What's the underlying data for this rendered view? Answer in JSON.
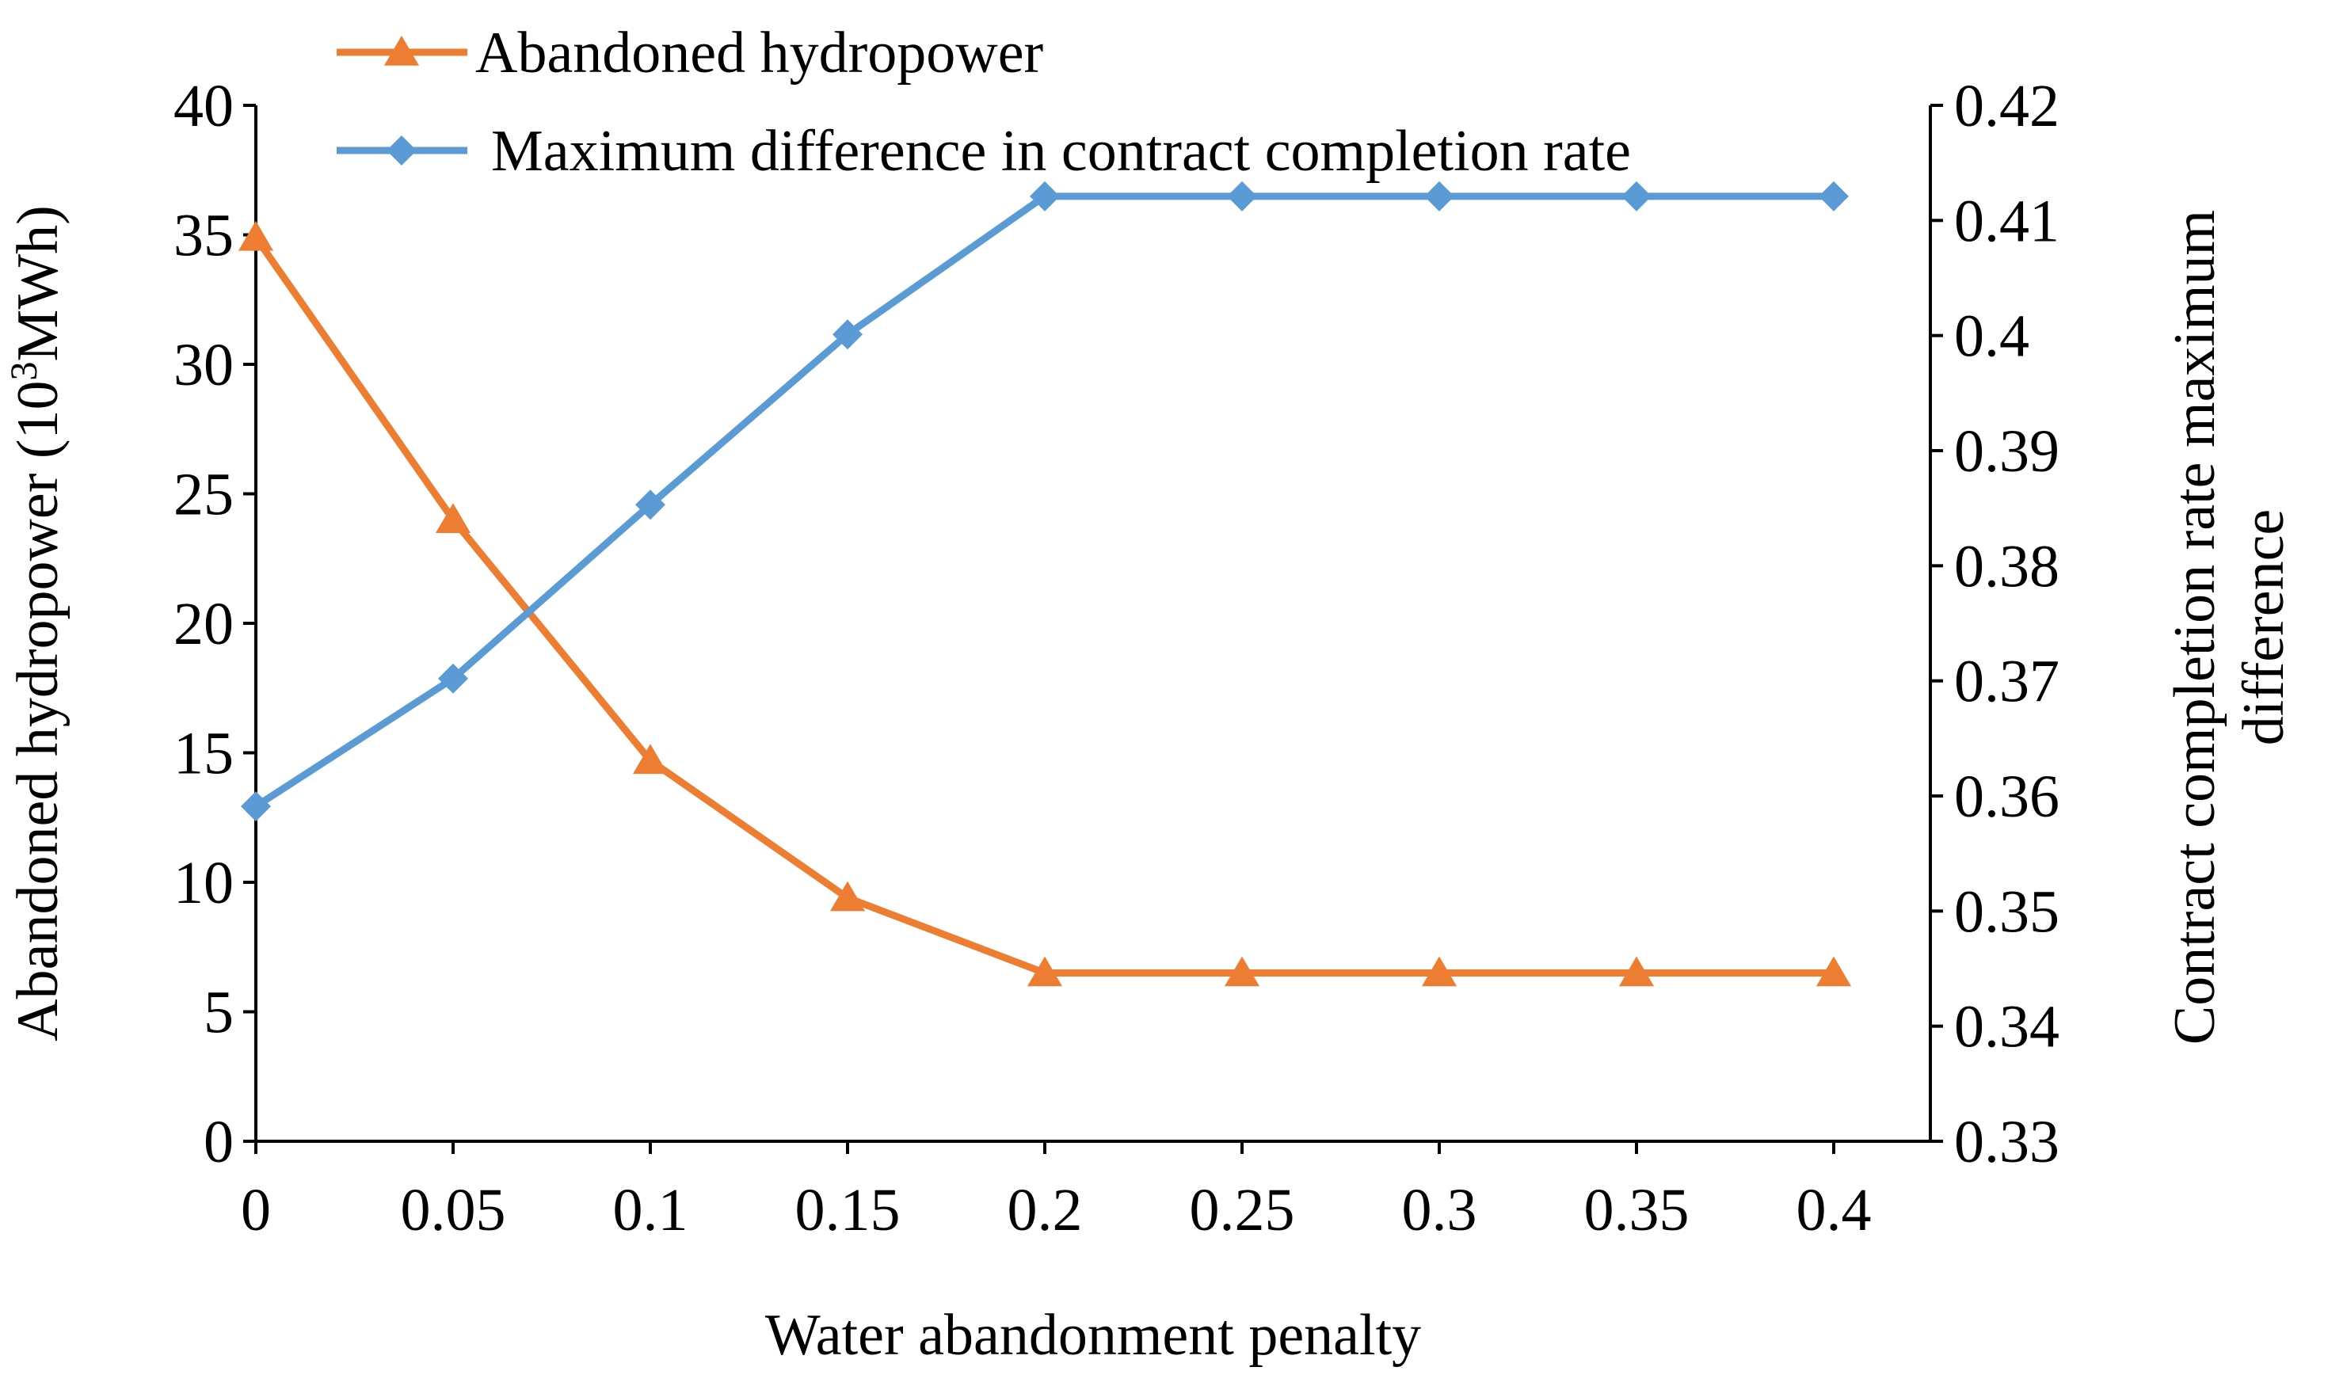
{
  "chart_data": {
    "type": "line",
    "title": "",
    "xlabel": "Water abandonment penalty",
    "x": [
      "0",
      "0.05",
      "0.1",
      "0.15",
      "0.2",
      "0.25",
      "0.3",
      "0.35",
      "0.4"
    ],
    "y_left": {
      "label_prefix": "Abandoned hydropower (10",
      "label_sup": "3",
      "label_suffix": "MWh)",
      "ylim": [
        0,
        40
      ],
      "ticks": [
        "0",
        "5",
        "10",
        "15",
        "20",
        "25",
        "30",
        "35",
        "40"
      ]
    },
    "y_right": {
      "label_line1": "Contract completion rate maximum",
      "label_line2": "difference",
      "ylim": [
        0.33,
        0.42
      ],
      "ticks": [
        "0.33",
        "0.34",
        "0.35",
        "0.36",
        "0.37",
        "0.38",
        "0.39",
        "0.4",
        "0.41",
        "0.42"
      ]
    },
    "series": [
      {
        "name": "Abandoned hydropower",
        "axis": "left",
        "marker": "triangle",
        "color": "#ED7D31",
        "values": [
          34.9,
          24.0,
          14.7,
          9.4,
          6.5,
          6.5,
          6.5,
          6.5,
          6.5
        ]
      },
      {
        "name": "Maximum difference in contract completion rate",
        "axis": "right",
        "marker": "diamond",
        "color": "#5B9BD5",
        "values": [
          0.3591,
          0.3702,
          0.3853,
          0.4001,
          0.4121,
          0.4121,
          0.4121,
          0.4121,
          0.4121
        ]
      }
    ],
    "legend": {
      "placement": "top"
    }
  }
}
